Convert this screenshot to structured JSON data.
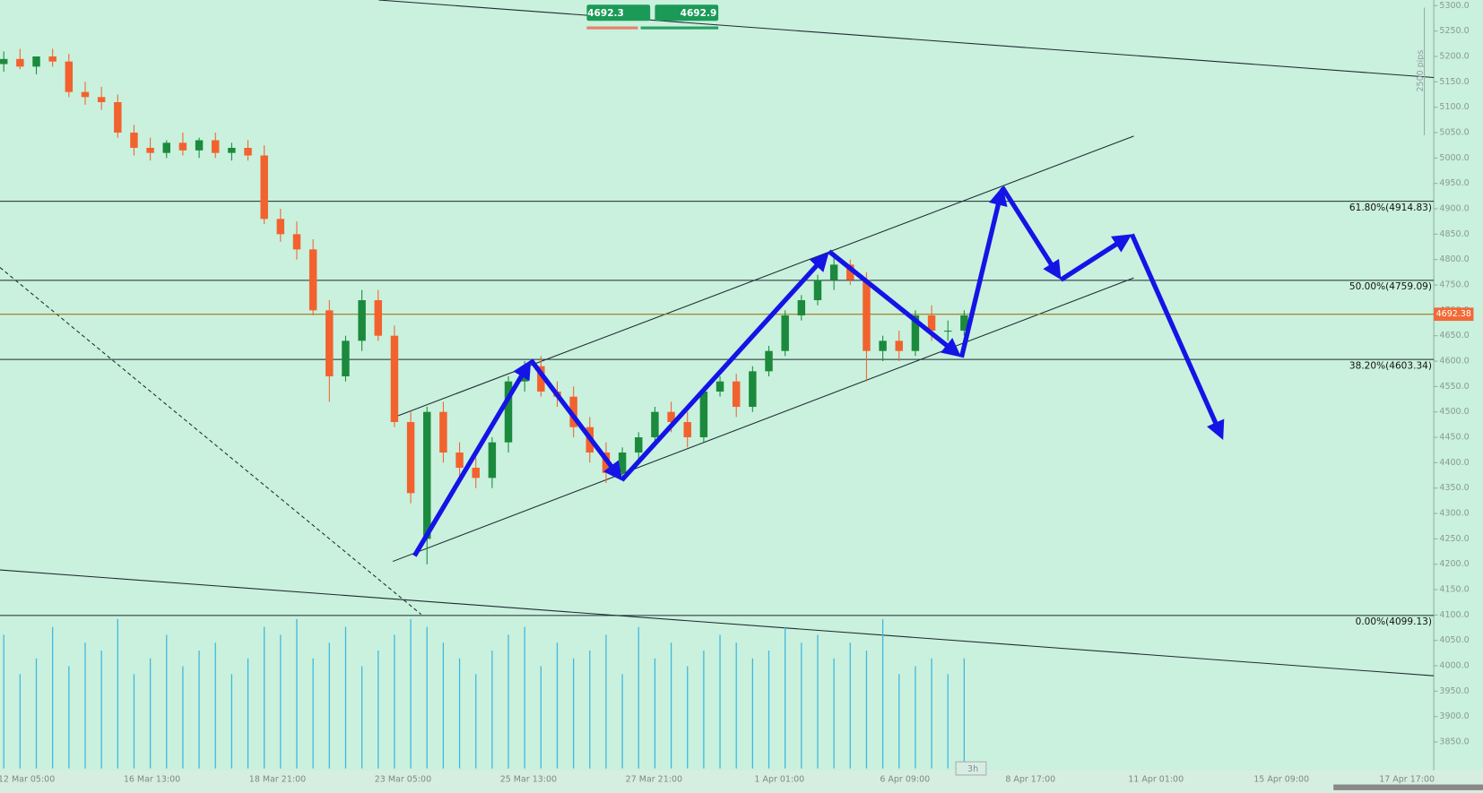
{
  "chart_data": {
    "type": "candlestick",
    "categories": [
      "12 Mar 05:00",
      "16 Mar 13:00",
      "18 Mar 21:00",
      "23 Mar 05:00",
      "25 Mar 13:00",
      "27 Mar 21:00",
      "1 Apr 01:00",
      "6 Apr 09:00",
      "8 Apr 17:00",
      "11 Apr 01:00",
      "15 Apr 09:00",
      "17 Apr 17:00"
    ],
    "open": [
      5185,
      5195,
      5180,
      5200,
      5190,
      5130,
      5120,
      5110,
      5050,
      5020,
      5010,
      5030,
      5015,
      5035,
      5010,
      5020,
      5005,
      4880,
      4850,
      4820,
      4700,
      4570,
      4640,
      4720,
      4650,
      4480,
      4250,
      4500,
      4420,
      4390,
      4370,
      4440,
      4560,
      4590,
      4540,
      4530,
      4470,
      4420,
      4380,
      4420,
      4450,
      4500,
      4480,
      4450,
      4540,
      4560,
      4510,
      4580,
      4620,
      4690,
      4720,
      4760,
      4790,
      4760,
      4620,
      4640,
      4620,
      4690,
      4660,
      4660
    ],
    "high": [
      5210,
      5215,
      5200,
      5215,
      5205,
      5150,
      5140,
      5125,
      5065,
      5040,
      5035,
      5050,
      5040,
      5050,
      5030,
      5035,
      5025,
      4900,
      4875,
      4840,
      4720,
      4650,
      4740,
      4740,
      4670,
      4500,
      4510,
      4520,
      4440,
      4410,
      4450,
      4570,
      4600,
      4610,
      4560,
      4550,
      4490,
      4440,
      4430,
      4460,
      4510,
      4520,
      4500,
      4550,
      4570,
      4575,
      4590,
      4630,
      4700,
      4730,
      4770,
      4810,
      4800,
      4775,
      4650,
      4660,
      4700,
      4710,
      4680,
      4700
    ],
    "low": [
      5170,
      5175,
      5165,
      5180,
      5120,
      5105,
      5095,
      5040,
      5005,
      4995,
      5000,
      5005,
      5000,
      5000,
      4995,
      4995,
      4870,
      4835,
      4800,
      4690,
      4520,
      4560,
      4620,
      4640,
      4470,
      4320,
      4200,
      4400,
      4370,
      4350,
      4350,
      4420,
      4540,
      4530,
      4510,
      4450,
      4400,
      4360,
      4370,
      4400,
      4440,
      4460,
      4430,
      4440,
      4530,
      4490,
      4500,
      4570,
      4610,
      4680,
      4710,
      4740,
      4750,
      4560,
      4600,
      4600,
      4610,
      4640,
      4640,
      4650
    ],
    "close": [
      5195,
      5180,
      5200,
      5190,
      5130,
      5120,
      5110,
      5050,
      5020,
      5010,
      5030,
      5015,
      5035,
      5010,
      5020,
      5005,
      4880,
      4850,
      4820,
      4700,
      4570,
      4640,
      4720,
      4650,
      4480,
      4340,
      4500,
      4420,
      4390,
      4370,
      4440,
      4560,
      4590,
      4540,
      4530,
      4470,
      4420,
      4380,
      4420,
      4450,
      4500,
      4480,
      4450,
      4540,
      4560,
      4510,
      4580,
      4620,
      4690,
      4720,
      4760,
      4790,
      4760,
      4620,
      4640,
      4620,
      4690,
      4660,
      4660,
      4690
    ],
    "volume": [
      85,
      60,
      70,
      90,
      65,
      80,
      75,
      95,
      60,
      70,
      85,
      65,
      75,
      80,
      60,
      70,
      90,
      85,
      95,
      70,
      80,
      90,
      65,
      75,
      85,
      95,
      90,
      80,
      70,
      60,
      75,
      85,
      90,
      65,
      80,
      70,
      75,
      85,
      60,
      90,
      70,
      80,
      65,
      75,
      85,
      80,
      70,
      75,
      90,
      80,
      85,
      70,
      80,
      75,
      95,
      60,
      65,
      70,
      60,
      70
    ],
    "ylim": [
      3850,
      5300
    ],
    "yticks": [
      {
        "value": 3850,
        "label": "3850.0"
      },
      {
        "value": 3900,
        "label": "3900.0"
      },
      {
        "value": 3950,
        "label": "3950.0"
      },
      {
        "value": 4000,
        "label": "4000.0"
      },
      {
        "value": 4050,
        "label": "4050.0"
      },
      {
        "value": 4100,
        "label": "4100.0"
      },
      {
        "value": 4150,
        "label": "4150.0"
      },
      {
        "value": 4200,
        "label": "4200.0"
      },
      {
        "value": 4250,
        "label": "4250.0"
      },
      {
        "value": 4300,
        "label": "4300.0"
      },
      {
        "value": 4350,
        "label": "4350.0"
      },
      {
        "value": 4400,
        "label": "4400.0"
      },
      {
        "value": 4450,
        "label": "4450.0"
      },
      {
        "value": 4500,
        "label": "4500.0"
      },
      {
        "value": 4550,
        "label": "4550.0"
      },
      {
        "value": 4600,
        "label": "4600.0"
      },
      {
        "value": 4650,
        "label": "4650.0"
      },
      {
        "value": 4700,
        "label": "4700.0"
      },
      {
        "value": 4750,
        "label": "4750.0"
      },
      {
        "value": 4800,
        "label": "4800.0"
      },
      {
        "value": 4850,
        "label": "4850.0"
      },
      {
        "value": 4900,
        "label": "4900.0"
      },
      {
        "value": 4950,
        "label": "4950.0"
      },
      {
        "value": 5000,
        "label": "5000.0"
      },
      {
        "value": 5050,
        "label": "5050.0"
      },
      {
        "value": 5100,
        "label": "5100.0"
      },
      {
        "value": 5150,
        "label": "5150.0"
      },
      {
        "value": 5200,
        "label": "5200.0"
      },
      {
        "value": 5250,
        "label": "5250.0"
      },
      {
        "value": 5300,
        "label": "5300.0"
      }
    ],
    "fib_levels": [
      {
        "value": 4914.83,
        "label": "61.80%(4914.83)"
      },
      {
        "value": 4759.09,
        "label": "50.00%(4759.09)"
      },
      {
        "value": 4603.34,
        "label": "38.20%(4603.34)"
      },
      {
        "value": 4099.13,
        "label": "0.00%(4099.13)"
      }
    ],
    "current_price": 4692.38,
    "up_color": "#1b8a3d",
    "down_color": "#f2622e",
    "volume_color": "#3fb6e0",
    "badges": [
      "4692.3",
      "4692.9"
    ],
    "range_label": "2500 pips",
    "timeframe": "3h"
  }
}
